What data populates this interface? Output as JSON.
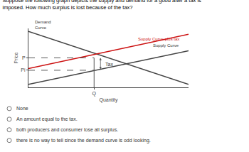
{
  "chart_data": {
    "type": "line",
    "title": "Suppose the following graph depicts the supply and demand for a good after a tax is imposed. How much surplus is lost because of the tax?",
    "x_label": "Quantity",
    "y_label": "Price",
    "xlim": [
      0,
      1
    ],
    "ylim": [
      0,
      1
    ],
    "xticks": [
      {
        "value": 0.41,
        "label": "Q"
      }
    ],
    "yticks": [
      {
        "value": 0.29,
        "label": "Pi"
      },
      {
        "value": 0.5,
        "label": "P"
      }
    ],
    "grid": false,
    "series": [
      {
        "name": "Demand\nCurve",
        "color": "#444444",
        "x": [
          0.0,
          1.0
        ],
        "values": [
          0.95,
          0.05
        ]
      },
      {
        "name": "Supply Curve",
        "color": "#444444",
        "x": [
          0.0,
          1.0
        ],
        "values": [
          0.05,
          0.62
        ]
      },
      {
        "name": "Supply Curve plus tax",
        "color": "#cc1111",
        "x": [
          0.0,
          1.0
        ],
        "values": [
          0.32,
          0.9
        ]
      },
      {
        "color": "#555555",
        "line_style": "solid",
        "x": [
          0.41,
          0.41
        ],
        "values": [
          0,
          0.5
        ]
      },
      {
        "color": "#555555",
        "line_style": "dashed",
        "x": [
          0,
          0.41
        ],
        "values": [
          0.5,
          0.5
        ]
      },
      {
        "color": "#555555",
        "line_style": "dashed",
        "x": [
          0,
          0.41
        ],
        "values": [
          0.29,
          0.29
        ]
      }
    ],
    "annotations": [
      "Tax"
    ],
    "options": [
      "None",
      "An amount equal to the tax.",
      "both producers and consumer lose all surplus.",
      "there is no way to tell since the demand curve is odd looking."
    ]
  }
}
